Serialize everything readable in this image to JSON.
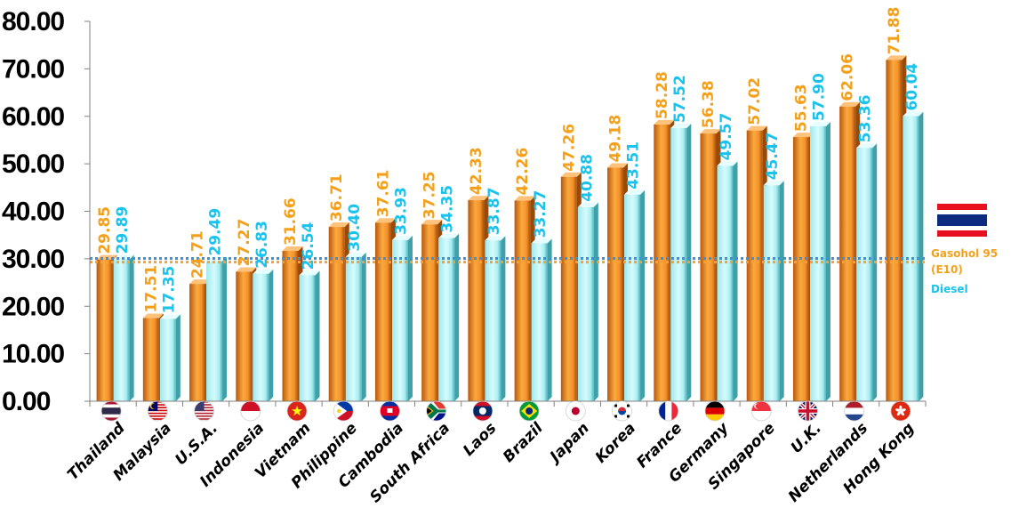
{
  "colors": {
    "gasohol": "#F7A132",
    "diesel": "#29C6F1",
    "gasohol_label": "#F5A01A",
    "diesel_label": "#19C3EE"
  },
  "chart_data": {
    "type": "bar",
    "categories": [
      "Thailand",
      "Malaysia",
      "U.S.A.",
      "Indonesia",
      "Vietnam",
      "Philippine",
      "Cambodia",
      "South Africa",
      "Laos",
      "Brazil",
      "Japan",
      "Korea",
      "France",
      "Germany",
      "Singapore",
      "U.K.",
      "Netherlands",
      "Hong Kong"
    ],
    "series": [
      {
        "name": "Gasohol 95 (E10)",
        "values": [
          29.85,
          17.51,
          24.71,
          27.27,
          31.66,
          36.71,
          37.61,
          37.25,
          42.33,
          42.26,
          47.26,
          49.18,
          58.28,
          56.38,
          57.02,
          55.63,
          62.06,
          71.88
        ]
      },
      {
        "name": "Diesel",
        "values": [
          29.89,
          17.35,
          29.49,
          26.83,
          26.54,
          30.4,
          33.93,
          34.35,
          33.87,
          33.27,
          40.88,
          43.51,
          57.52,
          49.57,
          45.47,
          57.9,
          53.36,
          60.04
        ]
      }
    ],
    "value_labels": {
      "gasohol": [
        "29.85",
        "17.51",
        "24.71",
        "27.27",
        "31.66",
        "36.71",
        "37.61",
        "37.25",
        "42.33",
        "42.26",
        "47.26",
        "49.18",
        "58.28",
        "56.38",
        "57.02",
        "55.63",
        "62.06",
        "71.88"
      ],
      "diesel": [
        "29.89",
        "17.35",
        "29.49",
        "26.83",
        "26.54",
        "30.40",
        "33.93",
        "34.35",
        "33.87",
        "33.27",
        "40.88",
        "43.51",
        "57.52",
        "49.57",
        "45.47",
        "57.90",
        "53.36",
        "60.04"
      ]
    },
    "yticks": [
      "0.00",
      "10.00",
      "20.00",
      "30.00",
      "40.00",
      "50.00",
      "60.00",
      "70.00",
      "80.00"
    ],
    "ylim": [
      0,
      80
    ],
    "reference_lines": [
      {
        "series": "Gasohol 95 (E10)",
        "country": "Thailand",
        "value": 29.85
      },
      {
        "series": "Diesel",
        "country": "Thailand",
        "value": 29.89
      }
    ],
    "flag_icons": [
      "thailand-flag-icon",
      "malaysia-flag-icon",
      "usa-flag-icon",
      "indonesia-flag-icon",
      "vietnam-flag-icon",
      "philippines-flag-icon",
      "cambodia-flag-icon",
      "south-africa-flag-icon",
      "laos-flag-icon",
      "brazil-flag-icon",
      "japan-flag-icon",
      "korea-flag-icon",
      "france-flag-icon",
      "germany-flag-icon",
      "singapore-flag-icon",
      "uk-flag-icon",
      "netherlands-flag-icon",
      "hong-kong-flag-icon"
    ],
    "legend": {
      "placement": "right",
      "icon": "thailand-flag-icon",
      "gasohol_line1": "Gasohol 95",
      "gasohol_line2": "(E10)",
      "diesel": "Diesel"
    }
  }
}
